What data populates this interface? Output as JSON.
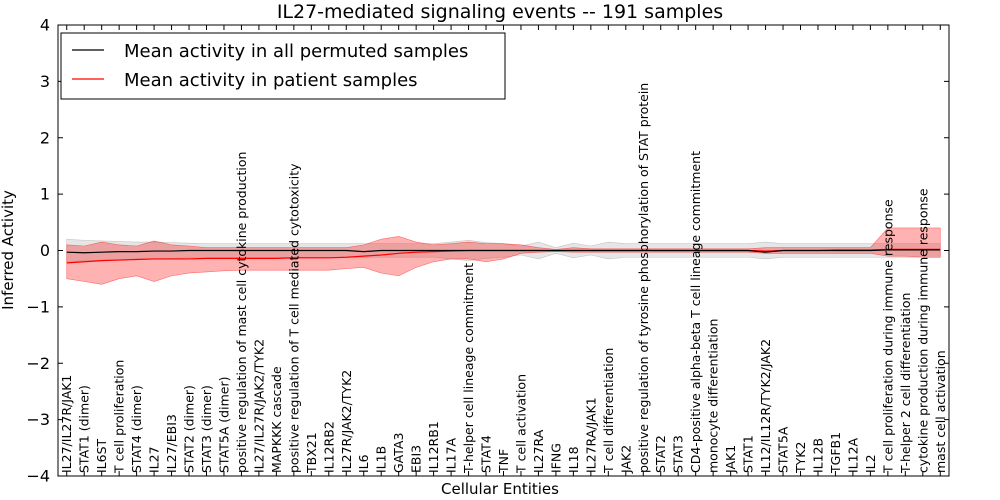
{
  "chart_data": {
    "type": "line",
    "title": "IL27-mediated signaling events -- 191 samples",
    "xlabel": "Cellular Entities",
    "ylabel": "Inferred Activity",
    "ylim": [
      -4,
      4
    ],
    "yticks": [
      "−4",
      "−3",
      "−2",
      "−1",
      "0",
      "1",
      "2",
      "3",
      "4"
    ],
    "categories": [
      "IL27/IL27R/JAK1",
      "STAT1 (dimer)",
      "IL6ST",
      "T cell proliferation",
      "STAT4 (dimer)",
      "IL27",
      "IL27/EBI3",
      "STAT2 (dimer)",
      "STAT3 (dimer)",
      "STAT5A (dimer)",
      "positive regulation of mast cell cytokine production",
      "IL27/IL27R/JAK2/TYK2",
      "MAPKKK cascade",
      "positive regulation of T cell mediated cytotoxicity",
      "TBX21",
      "IL12RB2",
      "IL27R/JAK2/TYK2",
      "IL6",
      "IL1B",
      "GATA3",
      "EBI3",
      "IL12RB1",
      "IL17A",
      "T-helper cell lineage commitment",
      "STAT4",
      "TNF",
      "T cell activation",
      "IL27RA",
      "IFNG",
      "IL18",
      "IL27RA/JAK1",
      "T cell differentiation",
      "JAK2",
      "positive regulation of tyrosine phosphorylation of STAT protein",
      "STAT2",
      "STAT3",
      "CD4-positive alpha-beta T cell lineage commitment",
      "monocyte differentiation",
      "JAK1",
      "STAT1",
      "IL12/IL12R/TYK2/JAK2",
      "STAT5A",
      "TYK2",
      "IL12B",
      "TGFB1",
      "IL12A",
      "IL2",
      "T cell proliferation during immune response",
      "T-helper 2 cell differentiation",
      "cytokine production during immune response",
      "mast cell activation"
    ],
    "series": [
      {
        "name": "Mean activity in all permuted samples",
        "color": "#000000",
        "values": [
          -0.03,
          -0.04,
          -0.03,
          -0.02,
          -0.02,
          -0.01,
          -0.01,
          0,
          0,
          0,
          0,
          0,
          0,
          0,
          0,
          0,
          0,
          -0.02,
          0,
          0,
          0,
          0,
          0,
          0,
          0,
          0,
          0,
          0,
          0,
          0,
          0,
          0,
          0,
          0,
          0,
          0,
          0,
          0,
          0,
          0,
          -0.03,
          0,
          0,
          0,
          0,
          0,
          0,
          0.01,
          0.01,
          0.01,
          0.01
        ],
        "band_upper": [
          0.2,
          0.18,
          0.17,
          0.16,
          0.15,
          0.15,
          0.14,
          0.13,
          0.12,
          0.12,
          0.12,
          0.12,
          0.12,
          0.12,
          0.12,
          0.12,
          0.12,
          0.12,
          0.12,
          0.12,
          0.12,
          0.12,
          0.15,
          0.18,
          0.14,
          0.12,
          0.08,
          0.15,
          0.05,
          0.13,
          0.08,
          0.15,
          0.12,
          0.12,
          0.12,
          0.12,
          0.12,
          0.12,
          0.12,
          0.12,
          0.15,
          0.12,
          0.12,
          0.12,
          0.12,
          0.12,
          0.12,
          0.12,
          0.12,
          0.12,
          0.12
        ],
        "band_lower": [
          -0.2,
          -0.18,
          -0.17,
          -0.16,
          -0.15,
          -0.15,
          -0.14,
          -0.13,
          -0.12,
          -0.12,
          -0.12,
          -0.12,
          -0.12,
          -0.12,
          -0.12,
          -0.12,
          -0.12,
          -0.12,
          -0.12,
          -0.12,
          -0.12,
          -0.12,
          -0.15,
          -0.18,
          -0.14,
          -0.12,
          -0.08,
          -0.15,
          -0.05,
          -0.13,
          -0.08,
          -0.15,
          -0.12,
          -0.12,
          -0.12,
          -0.12,
          -0.12,
          -0.12,
          -0.12,
          -0.12,
          -0.15,
          -0.12,
          -0.12,
          -0.12,
          -0.12,
          -0.12,
          -0.12,
          -0.12,
          -0.12,
          -0.12,
          -0.12
        ]
      },
      {
        "name": "Mean activity in patient samples",
        "color": "#ff0000",
        "values": [
          -0.22,
          -0.2,
          -0.18,
          -0.17,
          -0.16,
          -0.15,
          -0.15,
          -0.15,
          -0.14,
          -0.14,
          -0.14,
          -0.14,
          -0.14,
          -0.13,
          -0.13,
          -0.13,
          -0.12,
          -0.1,
          -0.08,
          -0.05,
          -0.03,
          -0.02,
          -0.01,
          0,
          0,
          0,
          0,
          0,
          0,
          0,
          0,
          0,
          0,
          0,
          0,
          0,
          0,
          0,
          0,
          0,
          -0.01,
          0,
          0,
          0,
          0.01,
          0.01,
          0.01,
          0.02,
          0.02,
          0.02,
          0.02
        ],
        "band_upper": [
          0.1,
          0.08,
          0.15,
          0.1,
          0.08,
          0.17,
          0.1,
          0.08,
          0.05,
          0.05,
          0.05,
          0.05,
          0.05,
          0.05,
          0.05,
          0.05,
          0.05,
          0.1,
          0.2,
          0.25,
          0.15,
          0.1,
          0.12,
          0.15,
          0.12,
          0.12,
          0.1,
          0.05,
          0.02,
          0.05,
          0.03,
          0.03,
          0.03,
          0.03,
          0.03,
          0.03,
          0.03,
          0.03,
          0.03,
          0.03,
          0.05,
          0.05,
          0.05,
          0.05,
          0.05,
          0.05,
          0.05,
          0.4,
          0.4,
          0.4,
          0.4
        ],
        "band_lower": [
          -0.5,
          -0.55,
          -0.6,
          -0.5,
          -0.45,
          -0.55,
          -0.45,
          -0.4,
          -0.38,
          -0.36,
          -0.35,
          -0.35,
          -0.35,
          -0.35,
          -0.35,
          -0.35,
          -0.32,
          -0.3,
          -0.4,
          -0.45,
          -0.3,
          -0.2,
          -0.15,
          -0.15,
          -0.2,
          -0.15,
          -0.05,
          -0.03,
          -0.02,
          -0.03,
          -0.03,
          -0.03,
          -0.03,
          -0.03,
          -0.03,
          -0.03,
          -0.03,
          -0.03,
          -0.03,
          -0.03,
          -0.05,
          -0.05,
          -0.05,
          -0.05,
          -0.05,
          -0.05,
          -0.05,
          -0.1,
          -0.1,
          -0.12,
          -0.12
        ]
      }
    ],
    "legend": {
      "position": "top-left",
      "entries": [
        "Mean activity in all permuted samples",
        "Mean activity in patient samples"
      ]
    }
  }
}
